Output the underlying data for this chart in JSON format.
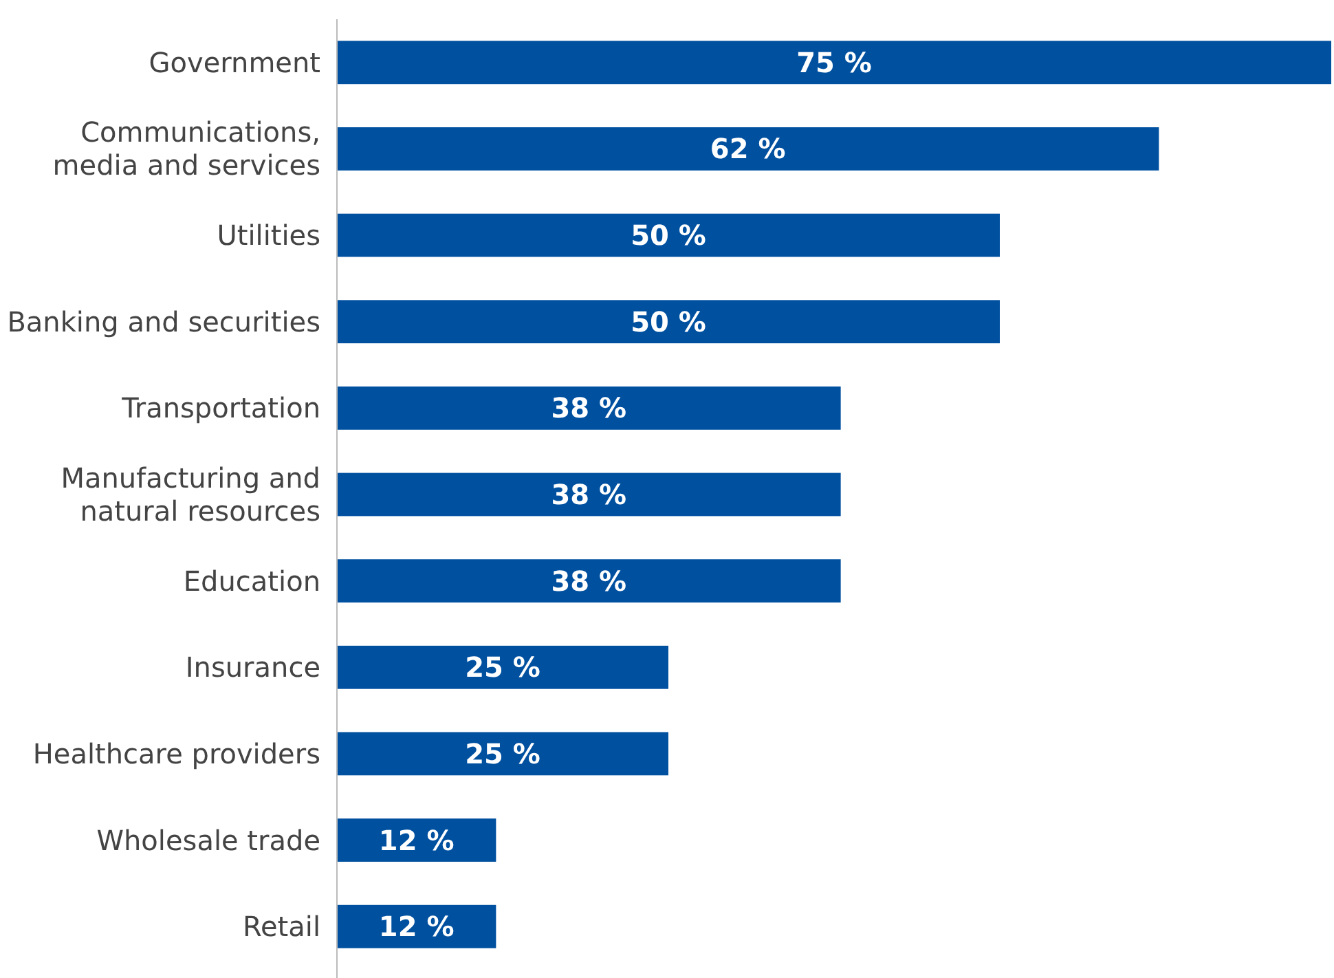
{
  "chart_data": {
    "type": "bar",
    "orientation": "horizontal",
    "categories": [
      "Government",
      "Communications,\nmedia and services",
      "Utilities",
      "Banking and securities",
      "Transportation",
      "Manufacturing and\nnatural resources",
      "Education",
      "Insurance",
      "Healthcare providers",
      "Wholesale trade",
      "Retail"
    ],
    "values": [
      75,
      62,
      50,
      50,
      38,
      38,
      38,
      25,
      25,
      12,
      12
    ],
    "value_labels": [
      "75 %",
      "62 %",
      "50 %",
      "50 %",
      "38 %",
      "38 %",
      "38 %",
      "25 %",
      "25 %",
      "12 %",
      "12 %"
    ],
    "color": "#0050a0"
  }
}
